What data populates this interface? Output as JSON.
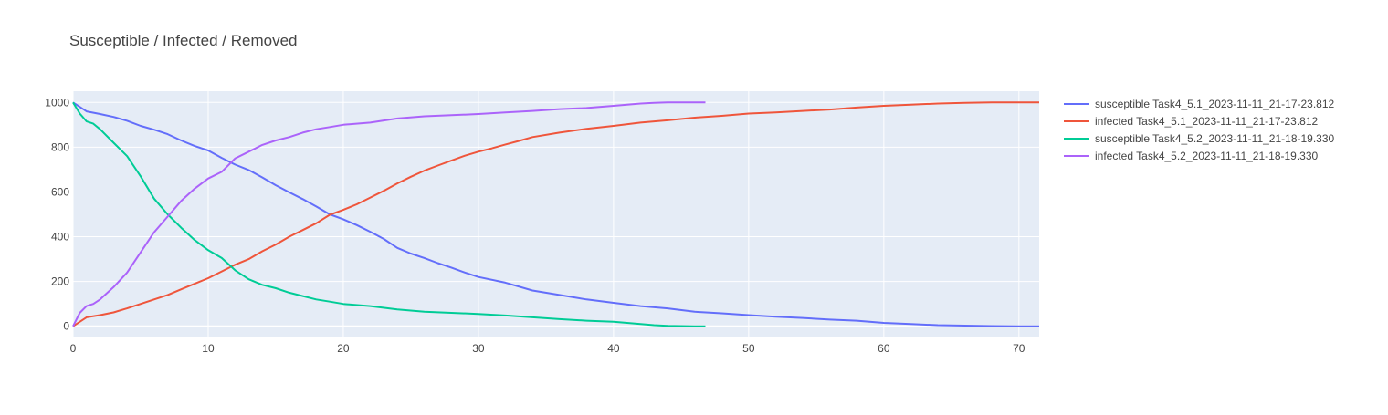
{
  "chart_data": {
    "type": "line",
    "title": "Susceptible / Infected / Removed",
    "xlabel": "",
    "ylabel": "",
    "xlim": [
      0,
      71.5
    ],
    "ylim": [
      -50,
      1050
    ],
    "x_ticks": [
      0,
      10,
      20,
      30,
      40,
      50,
      60,
      70
    ],
    "y_ticks": [
      0,
      200,
      400,
      600,
      800,
      1000
    ],
    "grid": true,
    "legend_position": "right",
    "plot_background": "#E5ECF6",
    "series": [
      {
        "name": "susceptible Task4_5.1_2023-11-11_21-17-23.812",
        "color": "#636EFA",
        "x": [
          0,
          1,
          2,
          3,
          4,
          5,
          6,
          7,
          8,
          9,
          10,
          11,
          12,
          13,
          14,
          15,
          16,
          17,
          18,
          19,
          20,
          21,
          22,
          23,
          24,
          25,
          26,
          27,
          28,
          29,
          30,
          32,
          34,
          36,
          38,
          40,
          42,
          44,
          46,
          48,
          50,
          52,
          54,
          56,
          58,
          60,
          62,
          64,
          66,
          68,
          70,
          71.5
        ],
        "y": [
          1000,
          960,
          948,
          935,
          918,
          895,
          878,
          858,
          830,
          805,
          785,
          752,
          722,
          698,
          665,
          630,
          598,
          568,
          535,
          500,
          478,
          452,
          422,
          390,
          350,
          325,
          305,
          282,
          262,
          240,
          220,
          195,
          160,
          140,
          120,
          105,
          90,
          80,
          65,
          58,
          50,
          43,
          37,
          30,
          25,
          15,
          10,
          5,
          3,
          1,
          0,
          0
        ]
      },
      {
        "name": "infected Task4_5.1_2023-11-11_21-17-23.812",
        "color": "#EF553B",
        "x": [
          0,
          1,
          2,
          3,
          4,
          5,
          6,
          7,
          8,
          9,
          10,
          11,
          12,
          13,
          14,
          15,
          16,
          17,
          18,
          19,
          20,
          21,
          22,
          23,
          24,
          25,
          26,
          27,
          28,
          29,
          30,
          31,
          32,
          33,
          34,
          36,
          38,
          40,
          42,
          44,
          46,
          48,
          50,
          52,
          54,
          56,
          58,
          60,
          62,
          64,
          66,
          68,
          70,
          71.5
        ],
        "y": [
          0,
          40,
          50,
          62,
          80,
          100,
          120,
          140,
          165,
          190,
          215,
          245,
          275,
          300,
          335,
          365,
          400,
          430,
          460,
          498,
          520,
          545,
          575,
          605,
          638,
          668,
          695,
          718,
          740,
          762,
          780,
          795,
          812,
          828,
          845,
          865,
          882,
          895,
          910,
          920,
          932,
          940,
          950,
          955,
          962,
          968,
          977,
          985,
          990,
          995,
          998,
          1000,
          1000,
          1000
        ]
      },
      {
        "name": "susceptible Task4_5.2_2023-11-11_21-18-19.330",
        "color": "#00CC96",
        "x": [
          0,
          0.5,
          1,
          1.5,
          2,
          3,
          4,
          5,
          6,
          7,
          8,
          9,
          10,
          11,
          12,
          13,
          14,
          15,
          16,
          17,
          18,
          19,
          20,
          22,
          24,
          26,
          28,
          30,
          32,
          34,
          36,
          38,
          40,
          42,
          43,
          44,
          45,
          46,
          46.8
        ],
        "y": [
          1000,
          950,
          915,
          905,
          880,
          820,
          760,
          670,
          570,
          500,
          440,
          385,
          340,
          305,
          250,
          210,
          185,
          170,
          150,
          135,
          120,
          110,
          100,
          90,
          75,
          65,
          60,
          55,
          48,
          40,
          32,
          25,
          20,
          10,
          5,
          2,
          1,
          0,
          0
        ]
      },
      {
        "name": "infected Task4_5.2_2023-11-11_21-18-19.330",
        "color": "#AB63FA",
        "x": [
          0,
          0.5,
          1,
          1.5,
          2,
          3,
          4,
          5,
          6,
          7,
          8,
          9,
          10,
          11,
          12,
          13,
          14,
          15,
          16,
          17,
          18,
          19,
          20,
          22,
          24,
          26,
          28,
          30,
          32,
          34,
          36,
          38,
          40,
          42,
          43,
          44,
          45,
          46,
          46.8
        ],
        "y": [
          0,
          60,
          90,
          100,
          120,
          175,
          240,
          330,
          420,
          490,
          560,
          615,
          660,
          690,
          750,
          780,
          810,
          830,
          845,
          865,
          880,
          890,
          900,
          910,
          928,
          938,
          943,
          948,
          955,
          962,
          970,
          975,
          985,
          995,
          998,
          1000,
          1000,
          1000,
          1000
        ]
      }
    ]
  }
}
